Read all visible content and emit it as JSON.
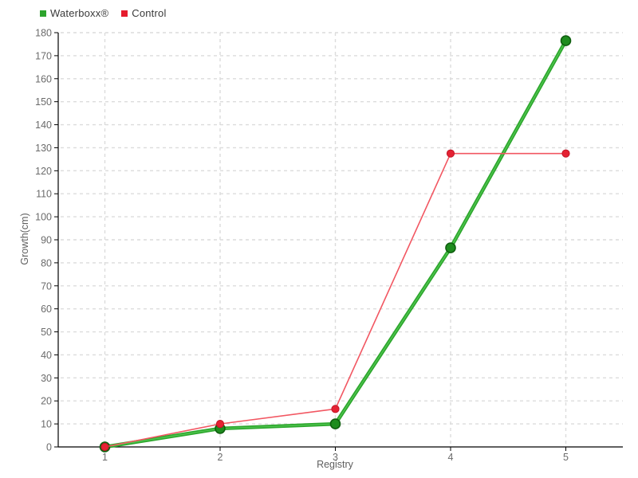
{
  "legend": {
    "items": [
      {
        "label": "Waterboxx®"
      },
      {
        "label": "Control"
      }
    ]
  },
  "chart_data": {
    "type": "line",
    "title": "",
    "xlabel": "Registry",
    "ylabel": "Growth(cm)",
    "categories": [
      "1",
      "2",
      "3",
      "4",
      "5"
    ],
    "ylim": [
      0,
      180
    ],
    "ytick_step": 10,
    "grid": true,
    "grid_style": "dashed",
    "legend_position": "top-left",
    "series": [
      {
        "name": "Waterboxx®",
        "values": [
          0,
          8,
          10,
          86.5,
          176.5
        ],
        "marker_color": "#2da42d",
        "line_color": "#2ca62c",
        "line_highlight": "#4fc44f",
        "dot_fill": "#1e8c1e",
        "dot_edge": "#0f5f0f",
        "line_width": 4.6,
        "dot_radius": 6
      },
      {
        "name": "Control",
        "values": [
          0,
          10,
          16.5,
          127.5,
          127.5
        ],
        "marker_color": "#e51b2d",
        "line_color": "#f25762",
        "line_highlight": "",
        "dot_fill": "#e52233",
        "dot_edge": "#c11526",
        "line_width": 1.6,
        "dot_radius": 4.6
      }
    ],
    "colors": {
      "grid": "#dcdcdc",
      "axis": "#000000",
      "tick_text": "#6b6b6b",
      "label_text": "#5f5f5f",
      "legend_text": "#3a3a3a"
    }
  }
}
